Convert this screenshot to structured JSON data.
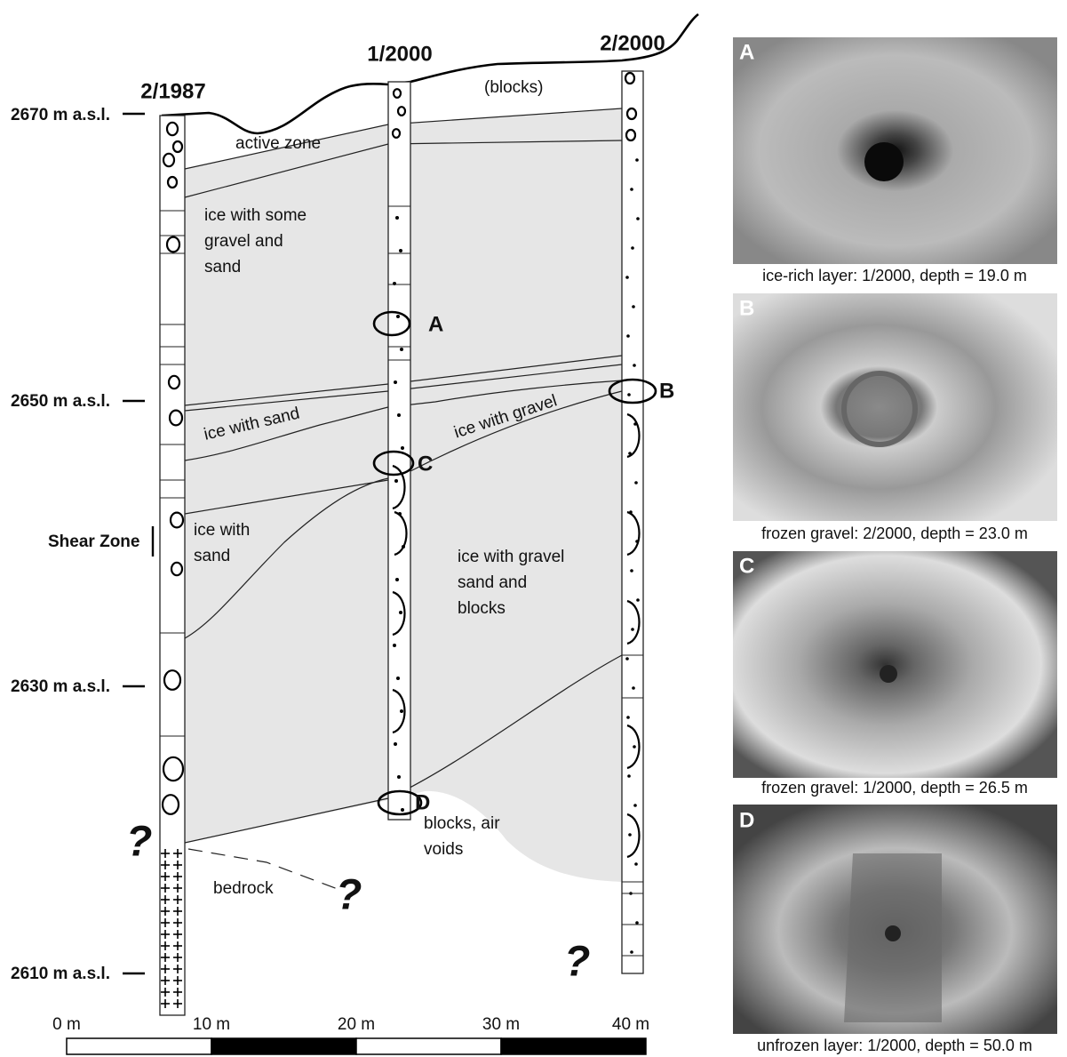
{
  "boreholes": [
    "2/1987",
    "1/2000",
    "2/2000"
  ],
  "elevations": [
    "2670 m a.s.l.",
    "2650 m a.s.l.",
    "2630 m a.s.l.",
    "2610 m a.s.l."
  ],
  "shear_zone": "Shear Zone",
  "layers": {
    "active_zone": "active zone",
    "blocks_top": "(blocks)",
    "ice_some_gravel": [
      "ice with some",
      "gravel and",
      "sand"
    ],
    "ice_with_sand_band": "ice with sand",
    "ice_with_gravel_band": "ice with gravel",
    "ice_with_sand_lower": [
      "ice with",
      "sand"
    ],
    "ice_gravel_sand_blocks": [
      "ice with gravel",
      "sand and",
      "blocks"
    ],
    "blocks_air_voids": [
      "blocks, air",
      "voids"
    ],
    "bedrock": "bedrock"
  },
  "markers": [
    "A",
    "B",
    "C",
    "D"
  ],
  "unknown": "?",
  "scale_bar": [
    "0 m",
    "10 m",
    "20 m",
    "30 m",
    "40 m"
  ],
  "photos": [
    {
      "letter": "A",
      "caption": "ice-rich layer: 1/2000, depth = 19.0 m"
    },
    {
      "letter": "B",
      "caption": "frozen gravel: 2/2000, depth = 23.0 m"
    },
    {
      "letter": "C",
      "caption": "frozen gravel: 1/2000, depth = 26.5 m"
    },
    {
      "letter": "D",
      "caption": "unfrozen layer: 1/2000, depth = 50.0 m"
    }
  ]
}
